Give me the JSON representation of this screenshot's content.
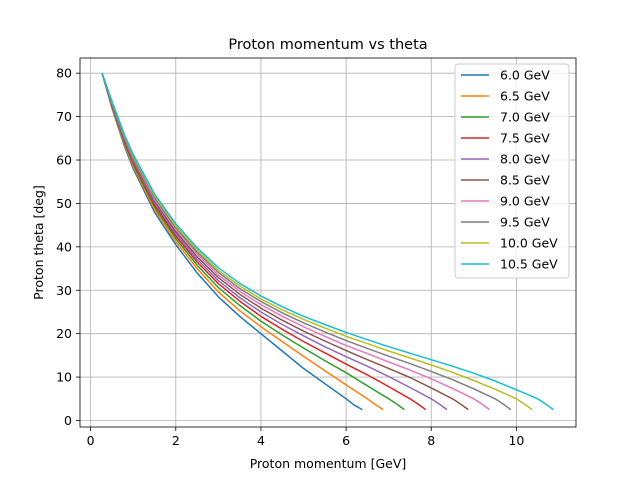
{
  "chart_data": {
    "type": "line",
    "title": "Proton momentum vs theta",
    "xlabel": "Proton momentum [GeV]",
    "ylabel": "Proton theta [deg]",
    "xlim": [
      -0.25,
      11.4
    ],
    "ylim": [
      -1.5,
      83.5
    ],
    "xticks": [
      0,
      2,
      4,
      6,
      8,
      10
    ],
    "yticks": [
      0,
      10,
      20,
      30,
      40,
      50,
      60,
      70,
      80
    ],
    "grid": true,
    "legend_position": "upper right",
    "series": [
      {
        "name": "6.0 GeV",
        "color": "#1f77b4",
        "x": [
          0.27,
          0.5,
          0.8,
          1.0,
          1.5,
          2.0,
          2.5,
          3.0,
          3.5,
          4.0,
          4.5,
          5.0,
          5.5,
          6.0,
          6.2,
          6.38
        ],
        "y": [
          80,
          72,
          63,
          58,
          48,
          40.5,
          34,
          28.5,
          24,
          20,
          16,
          12,
          8.5,
          5,
          3.5,
          2.5
        ]
      },
      {
        "name": "6.5 GeV",
        "color": "#ff7f0e",
        "x": [
          0.27,
          0.5,
          0.8,
          1.0,
          1.5,
          2.0,
          2.5,
          3.0,
          3.5,
          4.0,
          4.5,
          5.0,
          5.5,
          6.0,
          6.5,
          6.7,
          6.87
        ],
        "y": [
          80,
          72.2,
          63.4,
          58.5,
          48.6,
          41.2,
          35,
          29.6,
          25.3,
          21.6,
          18.2,
          14.8,
          11.5,
          8.2,
          5,
          3.6,
          2.5
        ]
      },
      {
        "name": "7.0 GeV",
        "color": "#2ca02c",
        "x": [
          0.27,
          0.5,
          0.8,
          1.0,
          1.5,
          2.0,
          2.5,
          3.0,
          3.5,
          4.0,
          4.5,
          5.0,
          5.5,
          6.0,
          6.5,
          7.0,
          7.2,
          7.37
        ],
        "y": [
          80,
          72.4,
          63.8,
          59,
          49.2,
          41.9,
          35.8,
          30.6,
          26.5,
          22.9,
          19.7,
          16.7,
          13.8,
          11,
          8,
          5,
          3.7,
          2.5
        ]
      },
      {
        "name": "7.5 GeV",
        "color": "#d62728",
        "x": [
          0.27,
          0.5,
          0.8,
          1.0,
          1.5,
          2.0,
          2.5,
          3.0,
          3.5,
          4.0,
          4.5,
          5.0,
          5.5,
          6.0,
          6.5,
          7.0,
          7.5,
          7.7,
          7.87
        ],
        "y": [
          80,
          72.6,
          64.2,
          59.4,
          49.7,
          42.5,
          36.5,
          31.5,
          27.5,
          24,
          21,
          18.2,
          15.6,
          13,
          10.5,
          7.8,
          5,
          3.7,
          2.5
        ]
      },
      {
        "name": "8.0 GeV",
        "color": "#9467bd",
        "x": [
          0.27,
          0.5,
          0.8,
          1.0,
          1.5,
          2.0,
          2.5,
          3.0,
          3.5,
          4.0,
          4.5,
          5.0,
          5.5,
          6.0,
          6.5,
          7.0,
          7.5,
          8.0,
          8.2,
          8.37
        ],
        "y": [
          80,
          72.8,
          64.5,
          59.8,
          50.2,
          43,
          37.1,
          32.2,
          28.3,
          25,
          22.1,
          19.5,
          17,
          14.7,
          12.5,
          10.1,
          7.6,
          5,
          3.7,
          2.5
        ]
      },
      {
        "name": "8.5 GeV",
        "color": "#8c564b",
        "x": [
          0.27,
          0.5,
          0.8,
          1.0,
          1.5,
          2.0,
          2.5,
          3.0,
          3.5,
          4.0,
          4.5,
          5.0,
          5.5,
          6.0,
          6.5,
          7.0,
          7.5,
          8.0,
          8.5,
          8.7,
          8.87
        ],
        "y": [
          80,
          73,
          64.8,
          60.1,
          50.6,
          43.5,
          37.7,
          32.9,
          29.1,
          25.9,
          23.1,
          20.6,
          18.3,
          16.1,
          14,
          12,
          9.9,
          7.5,
          5,
          3.7,
          2.5
        ]
      },
      {
        "name": "9.0 GeV",
        "color": "#e377c2",
        "x": [
          0.27,
          0.5,
          0.8,
          1.0,
          1.5,
          2.0,
          2.5,
          3.0,
          3.5,
          4.0,
          4.5,
          5.0,
          5.5,
          6.0,
          6.5,
          7.0,
          7.5,
          8.0,
          8.5,
          9.0,
          9.2,
          9.37
        ],
        "y": [
          80,
          73.2,
          65.1,
          60.4,
          51,
          44,
          38.3,
          33.5,
          29.8,
          26.7,
          24,
          21.6,
          19.4,
          17.3,
          15.4,
          13.5,
          11.6,
          9.6,
          7.4,
          5,
          3.7,
          2.5
        ]
      },
      {
        "name": "9.5 GeV",
        "color": "#7f7f7f",
        "x": [
          0.27,
          0.5,
          0.8,
          1.0,
          1.5,
          2.0,
          2.5,
          3.0,
          3.5,
          4.0,
          4.5,
          5.0,
          5.5,
          6.0,
          6.5,
          7.0,
          7.5,
          8.0,
          8.5,
          9.0,
          9.5,
          9.7,
          9.87
        ],
        "y": [
          80,
          73.3,
          65.3,
          60.7,
          51.4,
          44.4,
          38.8,
          34.1,
          30.4,
          27.4,
          24.8,
          22.5,
          20.4,
          18.4,
          16.6,
          14.8,
          13.1,
          11.3,
          9.4,
          7.3,
          5,
          3.7,
          2.5
        ]
      },
      {
        "name": "10.0 GeV",
        "color": "#bcbd22",
        "x": [
          0.27,
          0.5,
          0.8,
          1.0,
          1.5,
          2.0,
          2.5,
          3.0,
          3.5,
          4.0,
          4.5,
          5.0,
          5.5,
          6.0,
          6.5,
          7.0,
          7.5,
          8.0,
          8.5,
          9.0,
          9.5,
          10.0,
          10.2,
          10.37
        ],
        "y": [
          80,
          73.5,
          65.5,
          61,
          51.8,
          44.8,
          39.3,
          34.6,
          31,
          28,
          25.5,
          23.3,
          21.3,
          19.4,
          17.7,
          16,
          14.4,
          12.8,
          11.1,
          9.2,
          7.2,
          5,
          3.7,
          2.5
        ]
      },
      {
        "name": "10.5 GeV",
        "color": "#17becf",
        "x": [
          0.27,
          0.5,
          0.8,
          1.0,
          1.5,
          2.0,
          2.5,
          3.0,
          3.5,
          4.0,
          4.5,
          5.0,
          5.5,
          6.0,
          6.5,
          7.0,
          7.5,
          8.0,
          8.5,
          9.0,
          9.5,
          10.0,
          10.5,
          10.7,
          10.87
        ],
        "y": [
          80,
          73.6,
          65.7,
          61.3,
          52.2,
          45.3,
          39.8,
          35.2,
          31.6,
          28.7,
          26.2,
          24,
          22.1,
          20.3,
          18.6,
          17,
          15.5,
          14,
          12.5,
          10.9,
          9.1,
          7.1,
          5,
          3.7,
          2.5
        ]
      }
    ]
  }
}
